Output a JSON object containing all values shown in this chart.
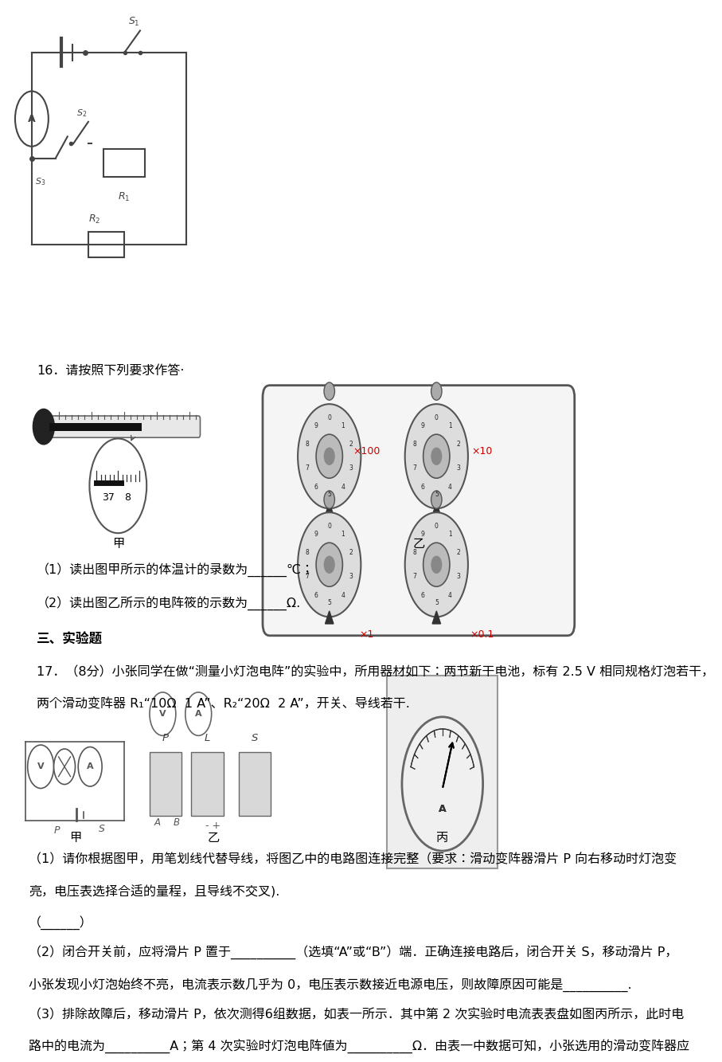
{
  "bg_color": "#ffffff",
  "page_width": 9.2,
  "page_height": 13.02,
  "text_color": "#000000",
  "gray": "#444444",
  "line16": "16．请按照下列要求作答·",
  "q1_text": "（1）读出图甲所示的体温计的录数为______℃；",
  "q2_text": "（2）读出图乙所示的电阵筱的示数为______Ω.",
  "sec3": "三、实验题",
  "q17_line1": "17．（8分）小张同学在做“测量小灯泡电阵”的实验中，所用器材如下：两节新干电池，标有 2.5 V 相同规格灯泡若干，",
  "q17_line2": "两个滑动变阵器 R₁“10Ω  1 A”、R₂“20Ω  2 A”，开关、导线若干.",
  "sub1_line1": "（1）请你根据图甲，用笔划线代替导线，将图乙中的电路图连接完整（要求：滑动变阵器滑片 P 向右移动时灯泡变",
  "sub1_line2": "亮，电压表选择合适的量程，且导线不交叉).",
  "sub1_blank": "（______）",
  "sub2_line1": "（2）闭合开关前，应将滑片 P 置于__________（选填“A”或“B”）端．正确连接电路后，闭合开关 S，移动滑片 P，",
  "sub2_line2": "小张发现小灯泡始终不亮，电流表示数几乎为 0，电压表示数接近电源电压，则故障原因可能是__________.",
  "sub3_line1": "（3）排除故障后，移动滑片 P，依次测得6组数据，如表一所示．其中第 2 次实验时电流表表盘如图丙所示，此时电",
  "sub3_line2": "路中的电流为__________A；第 4 次实验时灯泡电阵値为__________Ω．由表一中数据可知，小张选用的滑动变阵器应"
}
